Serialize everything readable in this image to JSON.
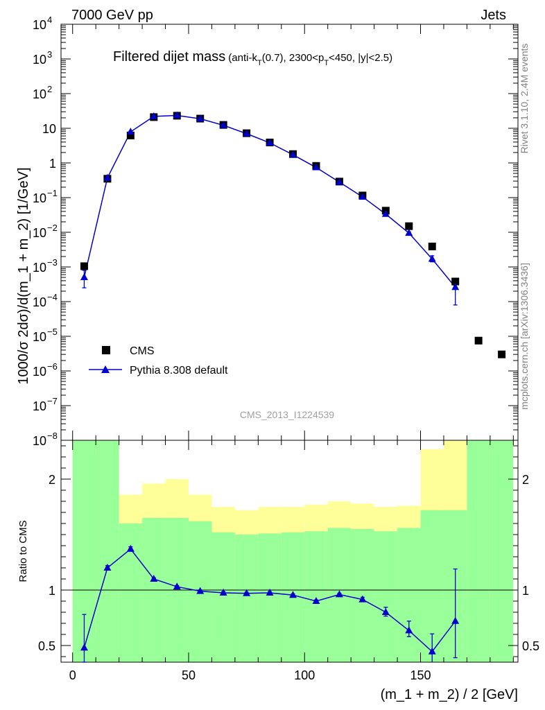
{
  "header": {
    "left": "7000 GeV pp",
    "right": "Jets"
  },
  "side_text": {
    "rivet": "Rivet 3.1.10,  2.4M events",
    "mcplots": "mcplots.cern.ch [arXiv:1306.3436]"
  },
  "chart_data": [
    {
      "type": "scatter",
      "panel": "main",
      "title": {
        "main": "Filtered dijet mass",
        "detail_parts": [
          "(anti-k",
          "T",
          "(0.7), 2300<p",
          "T",
          "<450, |y|<2.5)"
        ]
      },
      "watermark": "CMS_2013_I1224539",
      "ylabel": "1000/σ 2dσ)/d(m_1 + m_2) [1/GeV]",
      "yscale": "log",
      "ylim": [
        1e-08,
        10000
      ],
      "xlim": [
        -5,
        192
      ],
      "ytick_labels": [
        {
          "value": 10000,
          "base": "10",
          "exp": "4"
        },
        {
          "value": 1000,
          "base": "10",
          "exp": "3"
        },
        {
          "value": 100,
          "base": "10",
          "exp": "2"
        },
        {
          "value": 10,
          "base": "10",
          "exp": ""
        },
        {
          "value": 1,
          "base": "1",
          "exp": ""
        },
        {
          "value": 0.1,
          "base": "10",
          "exp": "−1"
        },
        {
          "value": 0.01,
          "base": "10",
          "exp": "−2"
        },
        {
          "value": 0.001,
          "base": "10",
          "exp": "−3"
        },
        {
          "value": 0.0001,
          "base": "10",
          "exp": "−4"
        },
        {
          "value": 1e-05,
          "base": "10",
          "exp": "−5"
        },
        {
          "value": 1e-06,
          "base": "10",
          "exp": "−6"
        },
        {
          "value": 1e-07,
          "base": "10",
          "exp": "−7"
        },
        {
          "value": 1e-08,
          "base": "10",
          "exp": "−8"
        }
      ],
      "legend_position": "lower-left",
      "series": [
        {
          "name": "CMS",
          "marker": "square",
          "color": "#000000",
          "x": [
            5,
            15,
            25,
            35,
            45,
            55,
            65,
            75,
            85,
            95,
            105,
            115,
            125,
            135,
            145,
            155,
            165,
            175,
            185
          ],
          "y": [
            0.00105,
            0.35,
            6.2,
            21,
            23,
            19,
            12.5,
            7.2,
            3.9,
            1.8,
            0.82,
            0.29,
            0.115,
            0.042,
            0.015,
            0.0039,
            0.00038,
            7.5e-06,
            3e-06
          ]
        },
        {
          "name": "Pythia 8.308 default",
          "marker": "triangle",
          "color": "#0000cc",
          "x": [
            5,
            15,
            25,
            35,
            45,
            55,
            65,
            75,
            85,
            95,
            105,
            115,
            125,
            135,
            145,
            155,
            165
          ],
          "y": [
            0.0005,
            0.37,
            7.9,
            22,
            23.5,
            18.8,
            12.2,
            7.0,
            3.8,
            1.72,
            0.74,
            0.28,
            0.105,
            0.0335,
            0.0095,
            0.0017,
            0.00026
          ],
          "yerr_low": [
            0.00025,
            0.02,
            0.3,
            0.5,
            0.5,
            0.4,
            0.3,
            0.2,
            0.1,
            0.05,
            0.03,
            0.012,
            0.005,
            0.002,
            0.0008,
            0.0003,
            0.00018
          ],
          "yerr_high": [
            0.0003,
            0.02,
            0.3,
            0.5,
            0.5,
            0.4,
            0.3,
            0.2,
            0.1,
            0.05,
            0.03,
            0.012,
            0.005,
            0.002,
            0.0008,
            0.0004,
            0.00016
          ]
        }
      ]
    },
    {
      "type": "line",
      "panel": "ratio",
      "ylabel": "Ratio to CMS",
      "xlabel": "(m_1 + m_2) / 2 [GeV]",
      "xlim": [
        -5,
        192
      ],
      "ylim": [
        0.35,
        2.35
      ],
      "x_ticks": [
        0,
        50,
        100,
        150
      ],
      "y_ticks": [
        0.5,
        1,
        2
      ],
      "reference_line": 1,
      "band_edges": [
        0,
        10,
        20,
        30,
        40,
        50,
        60,
        70,
        80,
        90,
        100,
        110,
        120,
        130,
        140,
        150,
        160,
        170,
        180,
        190
      ],
      "yellow_band": {
        "low": [
          0.3,
          0.3,
          0.68,
          0.3,
          0.38,
          0.58,
          0.78,
          0.81,
          0.81,
          0.82,
          0.83,
          0.84,
          0.85,
          0.87,
          0.82,
          0.3,
          0.58,
          0.3,
          0.3
        ],
        "high": [
          2.4,
          2.4,
          1.86,
          1.96,
          2.0,
          1.86,
          1.75,
          1.72,
          1.75,
          1.75,
          1.77,
          1.8,
          1.78,
          1.75,
          1.76,
          2.27,
          2.4,
          2.4,
          2.4
        ]
      },
      "green_band": {
        "low": [
          0.3,
          0.3,
          0.3,
          0.3,
          0.3,
          0.3,
          0.3,
          0.3,
          0.3,
          0.3,
          0.3,
          0.3,
          0.3,
          0.3,
          0.3,
          0.3,
          0.3,
          0.3,
          0.3
        ],
        "high": [
          2.4,
          2.4,
          1.6,
          1.65,
          1.65,
          1.62,
          1.52,
          1.5,
          1.51,
          1.52,
          1.53,
          1.56,
          1.55,
          1.53,
          1.56,
          1.72,
          1.72,
          2.4,
          2.4
        ]
      },
      "series": [
        {
          "name": "Pythia 8.308 default",
          "color": "#0000cc",
          "x": [
            5,
            15,
            25,
            35,
            45,
            55,
            65,
            75,
            85,
            95,
            105,
            115,
            125,
            135,
            145,
            155,
            165
          ],
          "y": [
            0.48,
            1.2,
            1.37,
            1.1,
            1.03,
            0.99,
            0.975,
            0.97,
            0.975,
            0.955,
            0.9,
            0.96,
            0.915,
            0.8,
            0.635,
            0.445,
            0.72
          ],
          "yerr_low": [
            0.13,
            0.02,
            0.02,
            0.01,
            0.01,
            0.01,
            0.01,
            0.01,
            0.01,
            0.01,
            0.01,
            0.01,
            0.02,
            0.035,
            0.055,
            0.11,
            0.33
          ],
          "yerr_high": [
            0.3,
            0.02,
            0.02,
            0.01,
            0.01,
            0.01,
            0.01,
            0.01,
            0.01,
            0.01,
            0.01,
            0.01,
            0.02,
            0.045,
            0.085,
            0.16,
            0.47
          ]
        }
      ]
    }
  ]
}
